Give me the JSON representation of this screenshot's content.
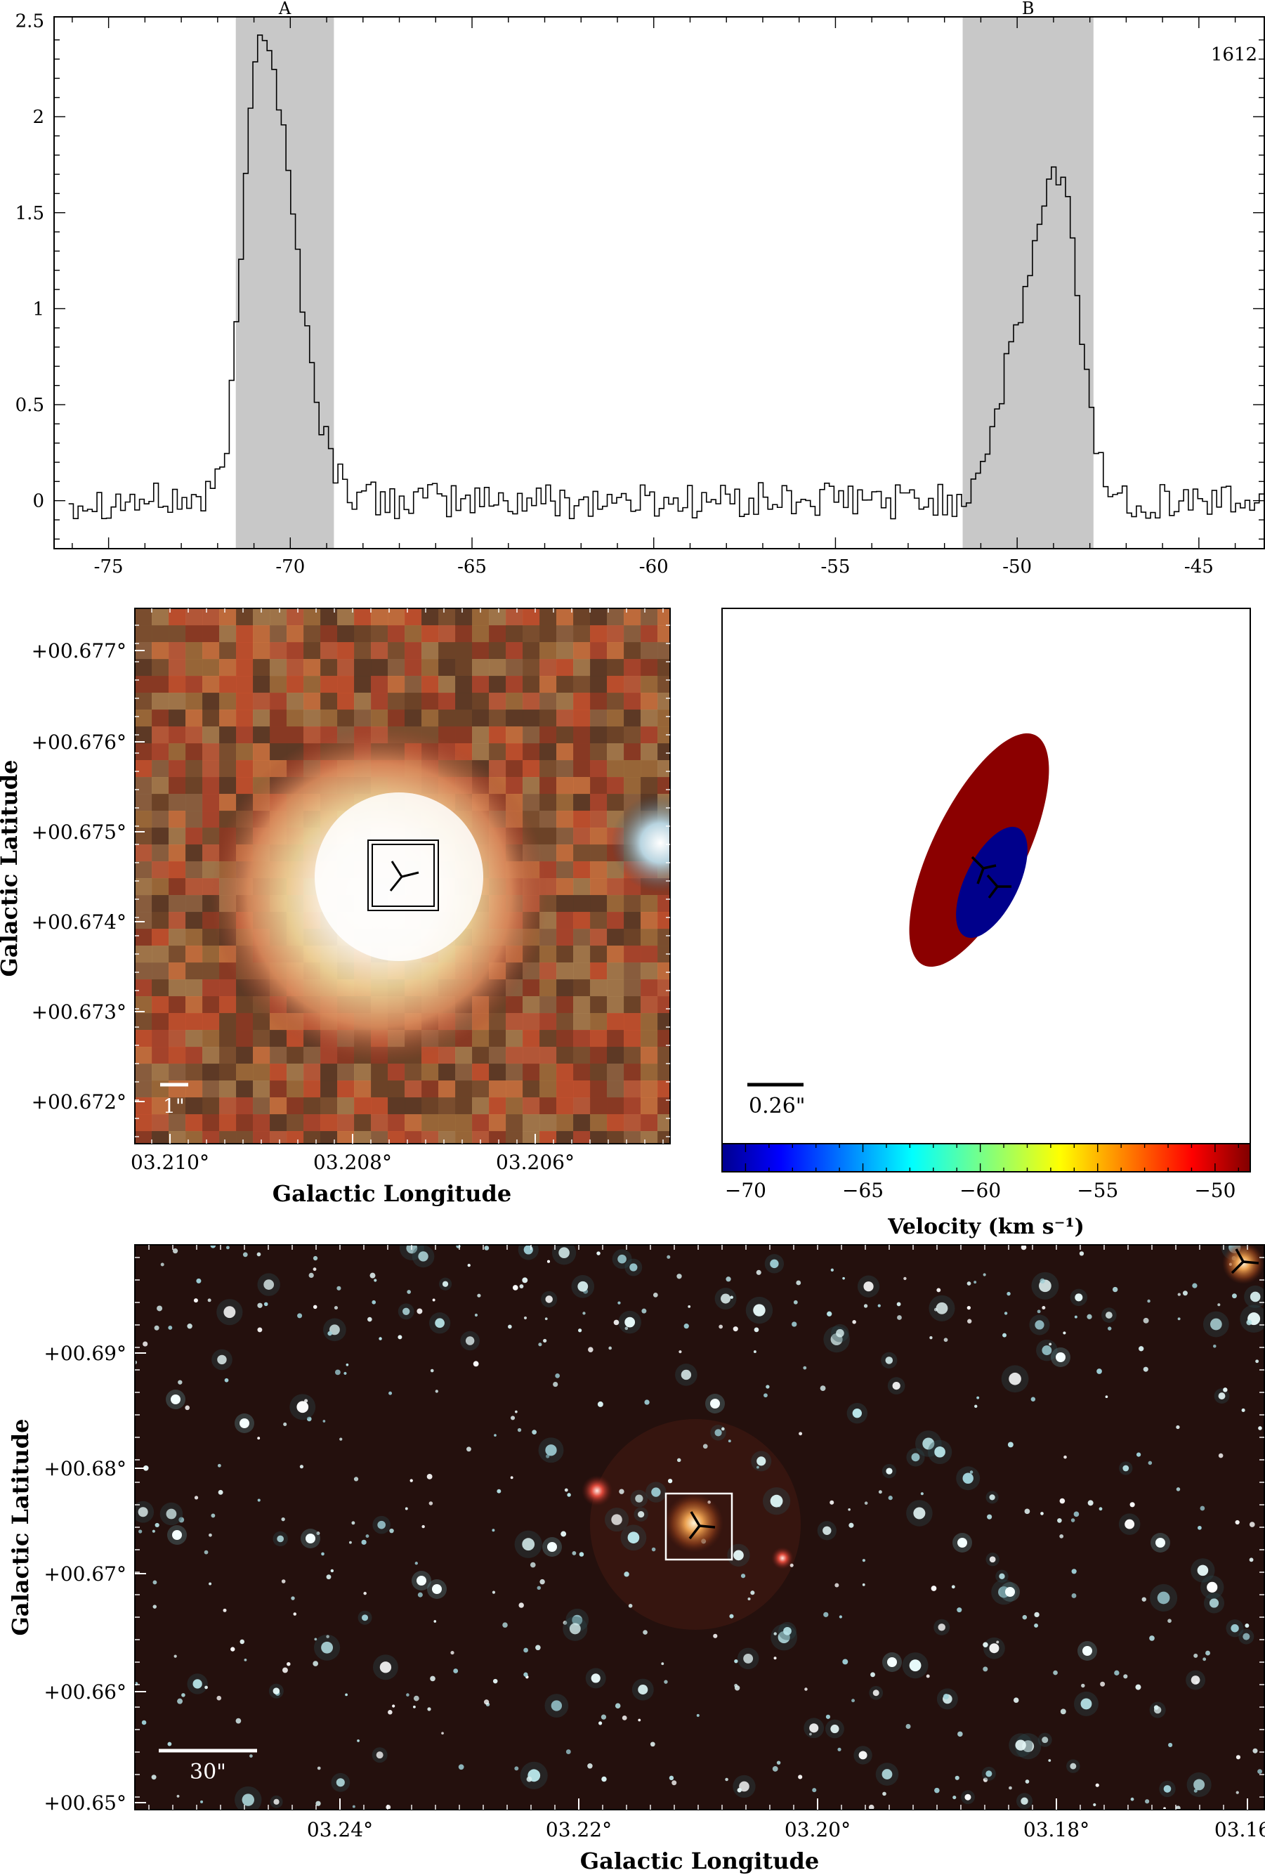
{
  "spectrum": {
    "type": "line",
    "label_corner": "1612",
    "xlim": [
      -76.5,
      -43.2
    ],
    "ylim": [
      -0.25,
      2.52
    ],
    "x_ticks": [
      "-75",
      "-70",
      "-65",
      "-60",
      "-55",
      "-50",
      "-45"
    ],
    "y_ticks": [
      "0",
      "0.5",
      "1",
      "1.5",
      "2",
      "2.5"
    ],
    "regions": [
      {
        "name": "A",
        "x_start": -71.5,
        "x_end": -68.8
      },
      {
        "name": "B",
        "x_start": -51.5,
        "x_end": -47.9
      }
    ],
    "peaks": [
      {
        "center": -70.9,
        "height": 2.47,
        "width_left": 0.45,
        "width_right": 0.9
      },
      {
        "center": -48.9,
        "height": 1.65,
        "width_left": 0.7,
        "width_right": 0.55
      }
    ],
    "shoulder": {
      "center": -50.2,
      "height": 0.5,
      "width": 0.6
    },
    "noise_rms": 0.06,
    "region_color": "#c8c8c8"
  },
  "panel_zoom": {
    "x_ticks": [
      "03.210°",
      "03.208°",
      "03.206°"
    ],
    "y_ticks": [
      "+00.677°",
      "+00.676°",
      "+00.675°",
      "+00.674°",
      "+00.673°",
      "+00.672°"
    ],
    "xlabel": "Galactic Longitude",
    "ylabel": "Galactic Latitude",
    "scale_bar": "1\""
  },
  "panel_maser": {
    "scale_bar": "0.26\"",
    "colorbar_ticks": [
      "−70",
      "−65",
      "−60",
      "−55",
      "−50"
    ],
    "colorbar_label": "Velocity (km s⁻¹)",
    "colorbar_range": [
      -71,
      -48.5
    ],
    "features": [
      {
        "velocity": -49,
        "color": "#8b0000"
      },
      {
        "velocity": -71,
        "color": "#00008b"
      }
    ]
  },
  "panel_wide": {
    "x_ticks": [
      "03.24°",
      "03.22°",
      "03.20°",
      "03.18°",
      "03.16°"
    ],
    "y_ticks": [
      "+00.69°",
      "+00.68°",
      "+00.67°",
      "+00.66°",
      "+00.65°"
    ],
    "xlabel": "Galactic Longitude",
    "ylabel": "Galactic Latitude",
    "scale_bar": "30\""
  }
}
